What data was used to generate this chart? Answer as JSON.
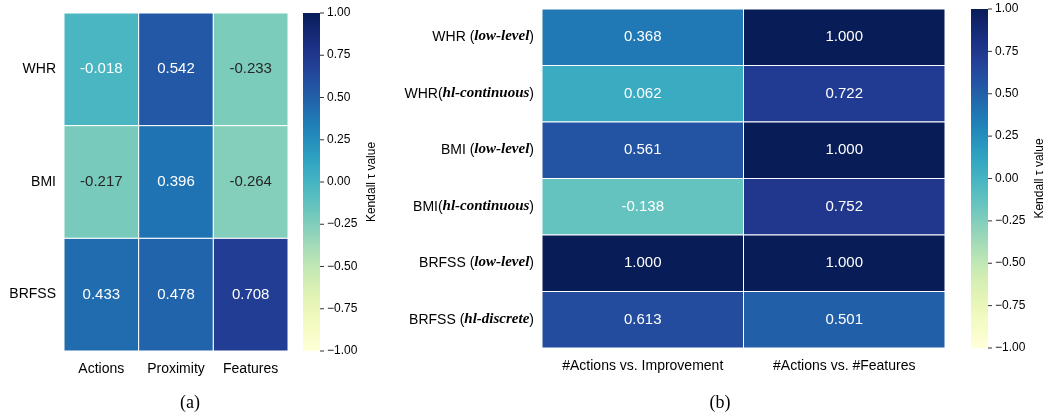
{
  "chart_data": [
    {
      "type": "heatmap",
      "categories": [
        "Actions",
        "Proximity",
        "Features"
      ],
      "y_categories": [
        "WHR",
        "BMI",
        "BRFSS"
      ],
      "cells": [
        [
          -0.018,
          0.542,
          -0.233
        ],
        [
          -0.217,
          0.396,
          -0.264
        ],
        [
          0.433,
          0.478,
          0.708
        ]
      ],
      "data_labels": true,
      "clim": [
        -1,
        1
      ],
      "cticks": [
        {
          "value": 1,
          "label": "1.00"
        },
        {
          "value": 0.75,
          "label": "0.75"
        },
        {
          "value": 0.5,
          "label": "0.50"
        },
        {
          "value": 0.25,
          "label": "0.25"
        },
        {
          "value": 0,
          "label": "0.00"
        },
        {
          "value": -0.25,
          "label": "−0.25"
        },
        {
          "value": -0.5,
          "label": "−0.50"
        },
        {
          "value": -0.75,
          "label": "−0.75"
        },
        {
          "value": -1,
          "label": "−1.00"
        }
      ],
      "clabel": "Kendall τ value",
      "annotations": [
        "(a)"
      ]
    },
    {
      "type": "heatmap",
      "categories": [
        "#Actions vs. Improvement",
        "#Actions vs. #Features"
      ],
      "y_categories": [
        "WHR (low-level)",
        "WHR(hl-continuous)",
        "BMI (low-level)",
        "BMI(hl-continuous)",
        "BRFSS (low-level)",
        "BRFSS (hl-discrete)"
      ],
      "cells": [
        [
          0.368,
          1.0
        ],
        [
          0.062,
          0.722
        ],
        [
          0.561,
          1.0
        ],
        [
          -0.138,
          0.752
        ],
        [
          1.0,
          1.0
        ],
        [
          0.613,
          0.501
        ]
      ],
      "cell_labels": [
        [
          "0.368",
          "1.000"
        ],
        [
          "0.062",
          "0.722"
        ],
        [
          "0.561",
          "1.000"
        ],
        [
          "-0.138",
          "0.752"
        ],
        [
          "1.000",
          "1.000"
        ],
        [
          "0.613",
          "0.501"
        ]
      ],
      "clim": [
        -1,
        1
      ],
      "cticks": [
        {
          "value": 1,
          "label": "1.00"
        },
        {
          "value": 0.75,
          "label": "0.75"
        },
        {
          "value": 0.5,
          "label": "0.50"
        },
        {
          "value": 0.25,
          "label": "0.25"
        },
        {
          "value": 0,
          "label": "0.00"
        },
        {
          "value": -0.25,
          "label": "−0.25"
        },
        {
          "value": -0.5,
          "label": "−0.50"
        },
        {
          "value": -0.75,
          "label": "−0.75"
        },
        {
          "value": -1,
          "label": "−1.00"
        }
      ],
      "clabel": "Kendall τ value",
      "annotations": [
        "(b)"
      ]
    }
  ]
}
